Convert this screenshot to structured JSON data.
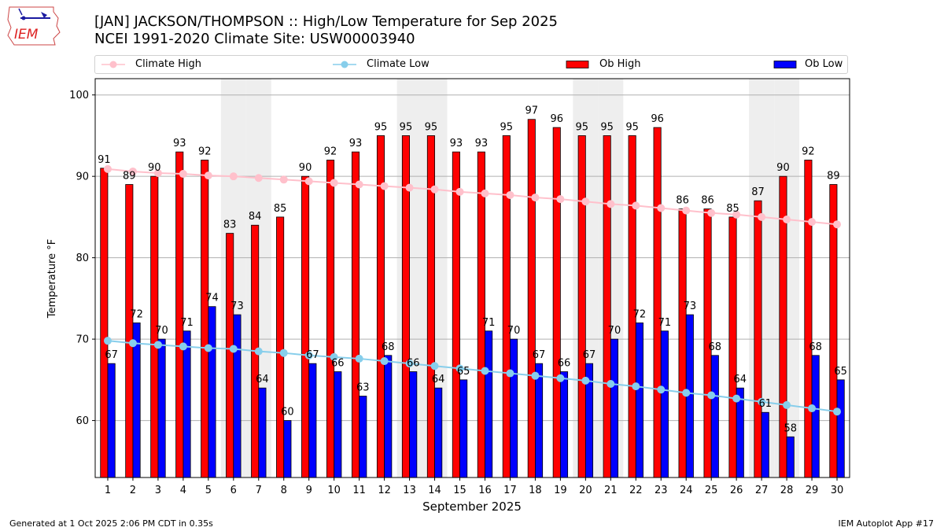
{
  "logo": {
    "text": "IEM"
  },
  "header": {
    "title_line1": "[JAN] JACKSON/THOMPSON :: High/Low Temperature for Sep 2025",
    "title_line2": "NCEI 1991-2020 Climate Site: USW00003940"
  },
  "footer": {
    "generated": "Generated at 1 Oct 2025 2:06 PM CDT in 0.35s",
    "app": "IEM Autoplot App #17"
  },
  "colors": {
    "ob_high": "#ff0000",
    "ob_low": "#0000ff",
    "climate_high": "#ffc0cb",
    "climate_low": "#87ceeb",
    "weekend": "#eeeeee"
  },
  "chart_data": {
    "type": "bar",
    "xlabel": "September 2025",
    "ylabel": "Temperature °F",
    "ylim": [
      53,
      102
    ],
    "xlim": [
      0.5,
      30.5
    ],
    "yticks": [
      60,
      70,
      80,
      90,
      100
    ],
    "grid": true,
    "legend_placement": "top",
    "legend": [
      "Climate High",
      "Climate Low",
      "Ob High",
      "Ob Low"
    ],
    "weekend_days": [
      6,
      7,
      13,
      14,
      20,
      21,
      27,
      28
    ],
    "categories": [
      1,
      2,
      3,
      4,
      5,
      6,
      7,
      8,
      9,
      10,
      11,
      12,
      13,
      14,
      15,
      16,
      17,
      18,
      19,
      20,
      21,
      22,
      23,
      24,
      25,
      26,
      27,
      28,
      29,
      30
    ],
    "series": [
      {
        "name": "Ob High",
        "type": "bar",
        "values": [
          91,
          89,
          90,
          93,
          92,
          83,
          84,
          85,
          90,
          92,
          93,
          95,
          95,
          95,
          93,
          93,
          95,
          97,
          96,
          95,
          95,
          95,
          96,
          86,
          86,
          85,
          87,
          90,
          92,
          89
        ]
      },
      {
        "name": "Ob Low",
        "type": "bar",
        "values": [
          67,
          72,
          70,
          71,
          74,
          73,
          64,
          60,
          67,
          66,
          63,
          68,
          66,
          64,
          65,
          71,
          70,
          67,
          66,
          67,
          70,
          72,
          71,
          73,
          68,
          64,
          61,
          58,
          68,
          65
        ]
      },
      {
        "name": "Climate High",
        "type": "line",
        "values": [
          90.9,
          90.6,
          90.4,
          90.3,
          90.1,
          90.0,
          89.8,
          89.6,
          89.4,
          89.2,
          89.0,
          88.8,
          88.6,
          88.4,
          88.1,
          87.9,
          87.7,
          87.4,
          87.2,
          86.9,
          86.6,
          86.4,
          86.1,
          85.8,
          85.5,
          85.3,
          85.0,
          84.7,
          84.4,
          84.1
        ]
      },
      {
        "name": "Climate Low",
        "type": "line",
        "values": [
          69.8,
          69.5,
          69.3,
          69.1,
          68.9,
          68.8,
          68.5,
          68.3,
          68.0,
          67.8,
          67.6,
          67.3,
          67.0,
          66.7,
          66.4,
          66.1,
          65.8,
          65.5,
          65.2,
          64.9,
          64.5,
          64.2,
          63.8,
          63.4,
          63.1,
          62.7,
          62.3,
          61.9,
          61.5,
          61.1
        ]
      }
    ]
  }
}
